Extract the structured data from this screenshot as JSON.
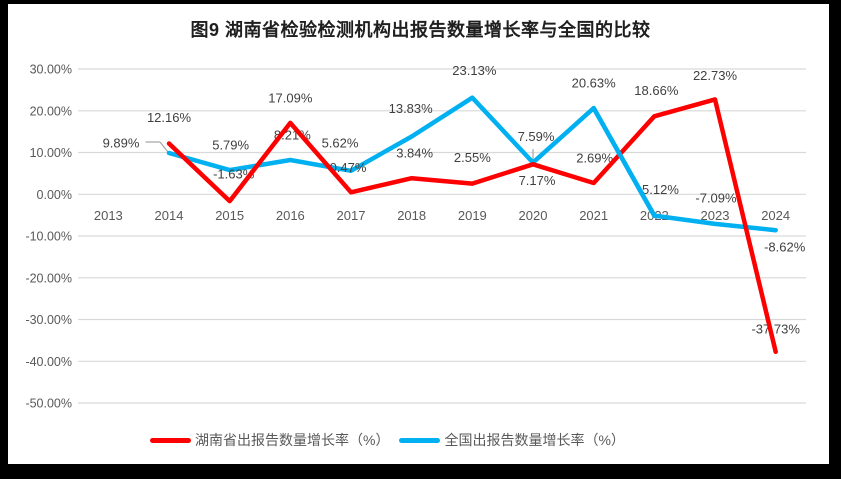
{
  "title": "图9 湖南省检验检测机构出报告数量增长率与全国的比较",
  "chart_data": {
    "type": "line",
    "title": "图9 湖南省检验检测机构出报告数量增长率与全国的比较",
    "categories": [
      "2013",
      "2014",
      "2015",
      "2016",
      "2017",
      "2018",
      "2019",
      "2020",
      "2021",
      "2022",
      "2023",
      "2024"
    ],
    "grid": true,
    "legend_position": "bottom",
    "background_color": "#ffffff",
    "frame_color": "#000000",
    "gridline_color": "#d9d9d9",
    "axis_text_color": "#595959",
    "data_label_color": "#404040",
    "leader_line_color": "#a6a6a6",
    "y_axis": {
      "min": -50,
      "max": 30,
      "step": 10,
      "format": "percent",
      "ticks": [
        {
          "value": 30,
          "label": "30.00%"
        },
        {
          "value": 20,
          "label": "20.00%"
        },
        {
          "value": 10,
          "label": "10.00%"
        },
        {
          "value": 0,
          "label": "0.00%"
        },
        {
          "value": -10,
          "label": "-10.00%"
        },
        {
          "value": -20,
          "label": "-20.00%"
        },
        {
          "value": -30,
          "label": "-30.00%"
        },
        {
          "value": -40,
          "label": "-40.00%"
        },
        {
          "value": -50,
          "label": "-50.00%"
        }
      ]
    },
    "series": [
      {
        "name": "湖南省出报告数量增长率（%）",
        "color": "#fe0000",
        "values": [
          null,
          12.16,
          -1.63,
          17.09,
          0.47,
          3.84,
          2.55,
          7.17,
          2.69,
          18.66,
          22.73,
          -37.73
        ],
        "labels": [
          null,
          "12.16%",
          "-1.63%",
          "17.09%",
          "0.47%",
          "3.84%",
          "2.55%",
          "7.17%",
          "2.69%",
          "18.66%",
          "22.73%",
          "-37.73%"
        ],
        "label_offsets": [
          null,
          [
            0,
            -26
          ],
          [
            4,
            -27
          ],
          [
            0,
            -25
          ],
          [
            -3,
            -25
          ],
          [
            3,
            -25
          ],
          [
            0,
            -26
          ],
          [
            4,
            16
          ],
          [
            1,
            -25
          ],
          [
            2,
            -26
          ],
          [
            0,
            -24
          ],
          [
            0,
            -23
          ]
        ]
      },
      {
        "name": "全国出报告数量增长率（%）",
        "color": "#00b0f0",
        "values": [
          null,
          9.89,
          5.79,
          8.21,
          5.62,
          13.83,
          23.13,
          7.59,
          20.63,
          -5.12,
          -7.09,
          -8.62
        ],
        "labels": [
          null,
          "9.89%",
          "5.79%",
          "8.21%",
          "5.62%",
          "13.83%",
          "23.13%",
          "7.59%",
          "20.63%",
          "-5.12%",
          "-7.09%",
          "-8.62%"
        ],
        "label_offsets": [
          null,
          [
            -48,
            -10
          ],
          [
            1,
            -25
          ],
          [
            2,
            -25
          ],
          [
            -11,
            -28
          ],
          [
            -1,
            -28
          ],
          [
            2,
            -27
          ],
          [
            3,
            -26
          ],
          [
            0,
            -25
          ],
          [
            4,
            -26
          ],
          [
            1,
            -26
          ],
          [
            9,
            17
          ]
        ]
      }
    ]
  }
}
